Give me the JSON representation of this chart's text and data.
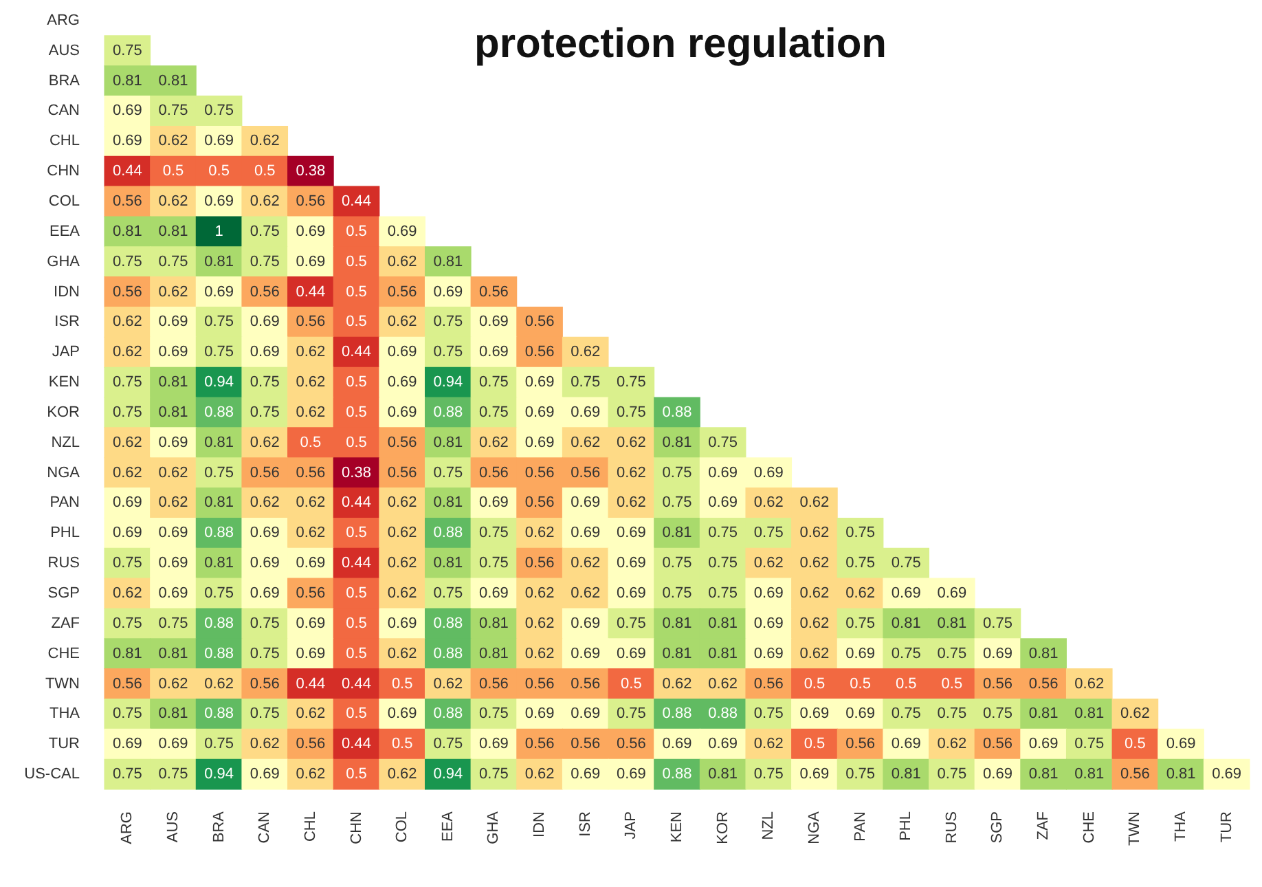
{
  "chart_data": {
    "type": "heatmap",
    "title": "protection regulation",
    "data_labels": true,
    "categories": [
      "ARG",
      "AUS",
      "BRA",
      "CAN",
      "CHL",
      "CHN",
      "COL",
      "EEA",
      "GHA",
      "IDN",
      "ISR",
      "JAP",
      "KEN",
      "KOR",
      "NZL",
      "NGA",
      "PAN",
      "PHL",
      "RUS",
      "SGP",
      "ZAF",
      "CHE",
      "TWN",
      "THA",
      "TUR"
    ],
    "y_categories": [
      "ARG",
      "AUS",
      "BRA",
      "CAN",
      "CHL",
      "CHN",
      "COL",
      "EEA",
      "GHA",
      "IDN",
      "ISR",
      "JAP",
      "KEN",
      "KOR",
      "NZL",
      "NGA",
      "PAN",
      "PHL",
      "RUS",
      "SGP",
      "ZAF",
      "CHE",
      "TWN",
      "THA",
      "TUR",
      "US-CAL"
    ],
    "cells": [
      [
        null,
        null,
        null,
        null,
        null,
        null,
        null,
        null,
        null,
        null,
        null,
        null,
        null,
        null,
        null,
        null,
        null,
        null,
        null,
        null,
        null,
        null,
        null,
        null,
        null
      ],
      [
        0.75,
        null,
        null,
        null,
        null,
        null,
        null,
        null,
        null,
        null,
        null,
        null,
        null,
        null,
        null,
        null,
        null,
        null,
        null,
        null,
        null,
        null,
        null,
        null,
        null
      ],
      [
        0.81,
        0.81,
        null,
        null,
        null,
        null,
        null,
        null,
        null,
        null,
        null,
        null,
        null,
        null,
        null,
        null,
        null,
        null,
        null,
        null,
        null,
        null,
        null,
        null,
        null
      ],
      [
        0.69,
        0.75,
        0.75,
        null,
        null,
        null,
        null,
        null,
        null,
        null,
        null,
        null,
        null,
        null,
        null,
        null,
        null,
        null,
        null,
        null,
        null,
        null,
        null,
        null,
        null
      ],
      [
        0.69,
        0.62,
        0.69,
        0.62,
        null,
        null,
        null,
        null,
        null,
        null,
        null,
        null,
        null,
        null,
        null,
        null,
        null,
        null,
        null,
        null,
        null,
        null,
        null,
        null,
        null
      ],
      [
        0.44,
        0.5,
        0.5,
        0.5,
        0.38,
        null,
        null,
        null,
        null,
        null,
        null,
        null,
        null,
        null,
        null,
        null,
        null,
        null,
        null,
        null,
        null,
        null,
        null,
        null,
        null
      ],
      [
        0.56,
        0.62,
        0.69,
        0.62,
        0.56,
        0.44,
        null,
        null,
        null,
        null,
        null,
        null,
        null,
        null,
        null,
        null,
        null,
        null,
        null,
        null,
        null,
        null,
        null,
        null,
        null
      ],
      [
        0.81,
        0.81,
        1,
        0.75,
        0.69,
        0.5,
        0.69,
        null,
        null,
        null,
        null,
        null,
        null,
        null,
        null,
        null,
        null,
        null,
        null,
        null,
        null,
        null,
        null,
        null,
        null
      ],
      [
        0.75,
        0.75,
        0.81,
        0.75,
        0.69,
        0.5,
        0.62,
        0.81,
        null,
        null,
        null,
        null,
        null,
        null,
        null,
        null,
        null,
        null,
        null,
        null,
        null,
        null,
        null,
        null,
        null
      ],
      [
        0.56,
        0.62,
        0.69,
        0.56,
        0.44,
        0.5,
        0.56,
        0.69,
        0.56,
        null,
        null,
        null,
        null,
        null,
        null,
        null,
        null,
        null,
        null,
        null,
        null,
        null,
        null,
        null,
        null
      ],
      [
        0.62,
        0.69,
        0.75,
        0.69,
        0.56,
        0.5,
        0.62,
        0.75,
        0.69,
        0.56,
        null,
        null,
        null,
        null,
        null,
        null,
        null,
        null,
        null,
        null,
        null,
        null,
        null,
        null,
        null
      ],
      [
        0.62,
        0.69,
        0.75,
        0.69,
        0.62,
        0.44,
        0.69,
        0.75,
        0.69,
        0.56,
        0.62,
        null,
        null,
        null,
        null,
        null,
        null,
        null,
        null,
        null,
        null,
        null,
        null,
        null,
        null
      ],
      [
        0.75,
        0.81,
        0.94,
        0.75,
        0.62,
        0.5,
        0.69,
        0.94,
        0.75,
        0.69,
        0.75,
        0.75,
        null,
        null,
        null,
        null,
        null,
        null,
        null,
        null,
        null,
        null,
        null,
        null,
        null
      ],
      [
        0.75,
        0.81,
        0.88,
        0.75,
        0.62,
        0.5,
        0.69,
        0.88,
        0.75,
        0.69,
        0.69,
        0.75,
        0.88,
        null,
        null,
        null,
        null,
        null,
        null,
        null,
        null,
        null,
        null,
        null,
        null
      ],
      [
        0.62,
        0.69,
        0.81,
        0.62,
        0.5,
        0.5,
        0.56,
        0.81,
        0.62,
        0.69,
        0.62,
        0.62,
        0.81,
        0.75,
        null,
        null,
        null,
        null,
        null,
        null,
        null,
        null,
        null,
        null,
        null
      ],
      [
        0.62,
        0.62,
        0.75,
        0.56,
        0.56,
        0.38,
        0.56,
        0.75,
        0.56,
        0.56,
        0.56,
        0.62,
        0.75,
        0.69,
        0.69,
        null,
        null,
        null,
        null,
        null,
        null,
        null,
        null,
        null,
        null
      ],
      [
        0.69,
        0.62,
        0.81,
        0.62,
        0.62,
        0.44,
        0.62,
        0.81,
        0.69,
        0.56,
        0.69,
        0.62,
        0.75,
        0.69,
        0.62,
        0.62,
        null,
        null,
        null,
        null,
        null,
        null,
        null,
        null,
        null
      ],
      [
        0.69,
        0.69,
        0.88,
        0.69,
        0.62,
        0.5,
        0.62,
        0.88,
        0.75,
        0.62,
        0.69,
        0.69,
        0.81,
        0.75,
        0.75,
        0.62,
        0.75,
        null,
        null,
        null,
        null,
        null,
        null,
        null,
        null
      ],
      [
        0.75,
        0.69,
        0.81,
        0.69,
        0.69,
        0.44,
        0.62,
        0.81,
        0.75,
        0.56,
        0.62,
        0.69,
        0.75,
        0.75,
        0.62,
        0.62,
        0.75,
        0.75,
        null,
        null,
        null,
        null,
        null,
        null,
        null
      ],
      [
        0.62,
        0.69,
        0.75,
        0.69,
        0.56,
        0.5,
        0.62,
        0.75,
        0.69,
        0.62,
        0.62,
        0.69,
        0.75,
        0.75,
        0.69,
        0.62,
        0.62,
        0.69,
        0.69,
        null,
        null,
        null,
        null,
        null,
        null
      ],
      [
        0.75,
        0.75,
        0.88,
        0.75,
        0.69,
        0.5,
        0.69,
        0.88,
        0.81,
        0.62,
        0.69,
        0.75,
        0.81,
        0.81,
        0.69,
        0.62,
        0.75,
        0.81,
        0.81,
        0.75,
        null,
        null,
        null,
        null,
        null
      ],
      [
        0.81,
        0.81,
        0.88,
        0.75,
        0.69,
        0.5,
        0.62,
        0.88,
        0.81,
        0.62,
        0.69,
        0.69,
        0.81,
        0.81,
        0.69,
        0.62,
        0.69,
        0.75,
        0.75,
        0.69,
        0.81,
        null,
        null,
        null,
        null
      ],
      [
        0.56,
        0.62,
        0.62,
        0.56,
        0.44,
        0.44,
        0.5,
        0.62,
        0.56,
        0.56,
        0.56,
        0.5,
        0.62,
        0.62,
        0.56,
        0.5,
        0.5,
        0.5,
        0.5,
        0.56,
        0.56,
        0.62,
        null,
        null,
        null
      ],
      [
        0.75,
        0.81,
        0.88,
        0.75,
        0.62,
        0.5,
        0.69,
        0.88,
        0.75,
        0.69,
        0.69,
        0.75,
        0.88,
        0.88,
        0.75,
        0.69,
        0.69,
        0.75,
        0.75,
        0.75,
        0.81,
        0.81,
        0.62,
        null,
        null
      ],
      [
        0.69,
        0.69,
        0.75,
        0.62,
        0.56,
        0.44,
        0.5,
        0.75,
        0.69,
        0.56,
        0.56,
        0.56,
        0.69,
        0.69,
        0.62,
        0.5,
        0.56,
        0.69,
        0.62,
        0.56,
        0.69,
        0.75,
        0.5,
        0.69,
        null
      ],
      [
        0.75,
        0.75,
        0.94,
        0.69,
        0.62,
        0.5,
        0.62,
        0.94,
        0.75,
        0.62,
        0.69,
        0.69,
        0.88,
        0.81,
        0.75,
        0.69,
        0.75,
        0.81,
        0.75,
        0.69,
        0.81,
        0.81,
        0.56,
        0.81,
        0.69
      ]
    ]
  }
}
